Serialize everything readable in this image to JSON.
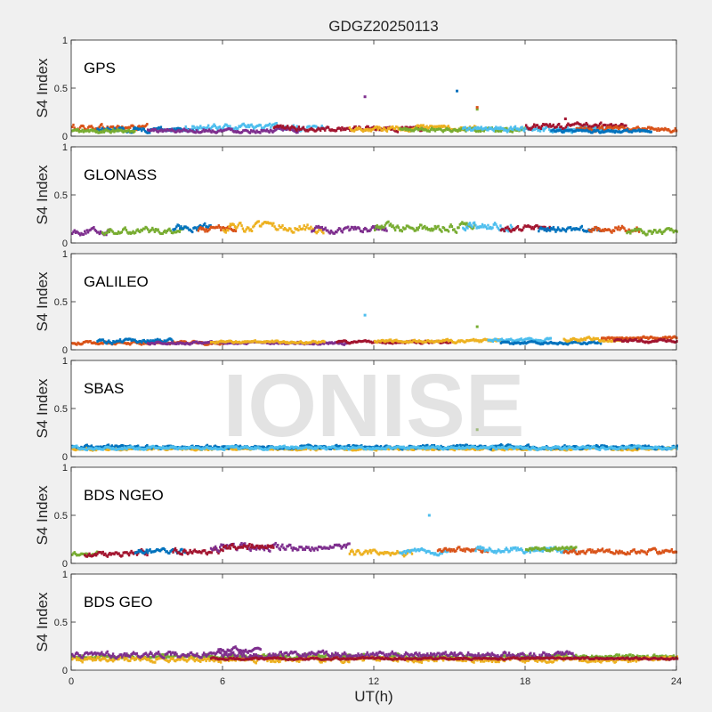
{
  "figure": {
    "title": "GDGZ20250113",
    "xlabel": "UT(h)",
    "watermark": "IONISE"
  },
  "chart_data": [
    {
      "type": "scatter",
      "panel_label": "GPS",
      "ylabel": "S4 Index",
      "xlim": [
        0,
        24
      ],
      "ylim": [
        0,
        1
      ],
      "xticks": [
        "0",
        "6",
        "12",
        "18",
        "24"
      ],
      "yticks": [
        "0",
        "0.5",
        "1"
      ],
      "grid": false,
      "colors": [
        "#0072BD",
        "#D95319",
        "#EDB120",
        "#7E2F8E",
        "#77AC30",
        "#4DBEEE",
        "#A2142F"
      ],
      "segments": [
        {
          "color": "#D95319",
          "x0": 0.0,
          "x1": 3.0,
          "mean": 0.09,
          "amp": 0.03
        },
        {
          "color": "#0072BD",
          "x0": 1.0,
          "x1": 5.0,
          "mean": 0.07,
          "amp": 0.025
        },
        {
          "color": "#77AC30",
          "x0": 0.0,
          "x1": 2.5,
          "mean": 0.05,
          "amp": 0.02
        },
        {
          "color": "#4DBEEE",
          "x0": 4.5,
          "x1": 10.0,
          "mean": 0.09,
          "amp": 0.03
        },
        {
          "color": "#7E2F8E",
          "x0": 3.0,
          "x1": 9.0,
          "mean": 0.06,
          "amp": 0.02
        },
        {
          "color": "#A2142F",
          "x0": 8.0,
          "x1": 14.0,
          "mean": 0.08,
          "amp": 0.025
        },
        {
          "color": "#EDB120",
          "x0": 11.0,
          "x1": 16.0,
          "mean": 0.08,
          "amp": 0.025
        },
        {
          "color": "#77AC30",
          "x0": 13.0,
          "x1": 18.0,
          "mean": 0.07,
          "amp": 0.02
        },
        {
          "color": "#4DBEEE",
          "x0": 15.5,
          "x1": 21.5,
          "mean": 0.07,
          "amp": 0.025
        },
        {
          "color": "#A2142F",
          "x0": 18.0,
          "x1": 22.0,
          "mean": 0.1,
          "amp": 0.03
        },
        {
          "color": "#D95319",
          "x0": 20.0,
          "x1": 24.0,
          "mean": 0.07,
          "amp": 0.025
        },
        {
          "color": "#0072BD",
          "x0": 19.0,
          "x1": 23.0,
          "mean": 0.05,
          "amp": 0.015
        }
      ],
      "outliers": [
        {
          "x": 11.65,
          "y": 0.41,
          "color": "#7E2F8E"
        },
        {
          "x": 15.3,
          "y": 0.47,
          "color": "#0072BD"
        },
        {
          "x": 16.1,
          "y": 0.28,
          "color": "#77AC30"
        },
        {
          "x": 16.1,
          "y": 0.3,
          "color": "#D95319"
        },
        {
          "x": 19.6,
          "y": 0.18,
          "color": "#A2142F"
        }
      ]
    },
    {
      "type": "scatter",
      "panel_label": "GLONASS",
      "ylabel": "S4 Index",
      "xlim": [
        0,
        24
      ],
      "ylim": [
        0,
        1
      ],
      "xticks": [
        "0",
        "6",
        "12",
        "18",
        "24"
      ],
      "yticks": [
        "0",
        "0.5",
        "1"
      ],
      "grid": false,
      "segments": [
        {
          "color": "#7E2F8E",
          "x0": 0.0,
          "x1": 1.5,
          "mean": 0.12,
          "amp": 0.03
        },
        {
          "color": "#77AC30",
          "x0": 1.2,
          "x1": 4.5,
          "mean": 0.13,
          "amp": 0.03
        },
        {
          "color": "#0072BD",
          "x0": 4.0,
          "x1": 5.5,
          "mean": 0.16,
          "amp": 0.03
        },
        {
          "color": "#D95319",
          "x0": 5.0,
          "x1": 6.5,
          "mean": 0.15,
          "amp": 0.03
        },
        {
          "color": "#EDB120",
          "x0": 6.0,
          "x1": 10.0,
          "mean": 0.16,
          "amp": 0.04
        },
        {
          "color": "#7E2F8E",
          "x0": 9.5,
          "x1": 12.5,
          "mean": 0.14,
          "amp": 0.03
        },
        {
          "color": "#77AC30",
          "x0": 12.0,
          "x1": 16.0,
          "mean": 0.16,
          "amp": 0.04
        },
        {
          "color": "#4DBEEE",
          "x0": 15.5,
          "x1": 17.5,
          "mean": 0.18,
          "amp": 0.04
        },
        {
          "color": "#A2142F",
          "x0": 17.0,
          "x1": 19.0,
          "mean": 0.15,
          "amp": 0.03
        },
        {
          "color": "#0072BD",
          "x0": 18.5,
          "x1": 21.0,
          "mean": 0.14,
          "amp": 0.03
        },
        {
          "color": "#D95319",
          "x0": 20.5,
          "x1": 22.5,
          "mean": 0.15,
          "amp": 0.03
        },
        {
          "color": "#77AC30",
          "x0": 22.0,
          "x1": 24.0,
          "mean": 0.12,
          "amp": 0.03
        }
      ],
      "outliers": []
    },
    {
      "type": "scatter",
      "panel_label": "GALILEO",
      "ylabel": "S4 Index",
      "xlim": [
        0,
        24
      ],
      "ylim": [
        0,
        1
      ],
      "xticks": [
        "0",
        "6",
        "12",
        "18",
        "24"
      ],
      "yticks": [
        "0",
        "0.5",
        "1"
      ],
      "grid": false,
      "segments": [
        {
          "color": "#D95319",
          "x0": 0.0,
          "x1": 6.0,
          "mean": 0.07,
          "amp": 0.015
        },
        {
          "color": "#0072BD",
          "x0": 1.0,
          "x1": 4.0,
          "mean": 0.09,
          "amp": 0.02
        },
        {
          "color": "#7E2F8E",
          "x0": 3.0,
          "x1": 11.0,
          "mean": 0.07,
          "amp": 0.012
        },
        {
          "color": "#EDB120",
          "x0": 5.5,
          "x1": 10.0,
          "mean": 0.08,
          "amp": 0.012
        },
        {
          "color": "#A2142F",
          "x0": 10.5,
          "x1": 15.0,
          "mean": 0.08,
          "amp": 0.012
        },
        {
          "color": "#EDB120",
          "x0": 12.0,
          "x1": 17.0,
          "mean": 0.09,
          "amp": 0.015
        },
        {
          "color": "#4DBEEE",
          "x0": 16.5,
          "x1": 19.0,
          "mean": 0.1,
          "amp": 0.015
        },
        {
          "color": "#0072BD",
          "x0": 17.0,
          "x1": 21.0,
          "mean": 0.07,
          "amp": 0.012
        },
        {
          "color": "#EDB120",
          "x0": 19.5,
          "x1": 22.0,
          "mean": 0.11,
          "amp": 0.02
        },
        {
          "color": "#D95319",
          "x0": 21.0,
          "x1": 24.0,
          "mean": 0.12,
          "amp": 0.015
        },
        {
          "color": "#A2142F",
          "x0": 21.5,
          "x1": 24.0,
          "mean": 0.09,
          "amp": 0.015
        }
      ],
      "outliers": [
        {
          "x": 11.65,
          "y": 0.36,
          "color": "#4DBEEE"
        },
        {
          "x": 16.1,
          "y": 0.24,
          "color": "#77AC30"
        }
      ]
    },
    {
      "type": "scatter",
      "panel_label": "SBAS",
      "ylabel": "S4 Index",
      "xlim": [
        0,
        24
      ],
      "ylim": [
        0,
        1
      ],
      "xticks": [
        "0",
        "6",
        "12",
        "18",
        "24"
      ],
      "yticks": [
        "0",
        "0.5",
        "1"
      ],
      "grid": false,
      "segments": [
        {
          "color": "#EDB120",
          "x0": 0.0,
          "x1": 24.0,
          "mean": 0.08,
          "amp": 0.012
        },
        {
          "color": "#0072BD",
          "x0": 0.0,
          "x1": 24.0,
          "mean": 0.1,
          "amp": 0.018
        },
        {
          "color": "#4DBEEE",
          "x0": 0.0,
          "x1": 24.0,
          "mean": 0.09,
          "amp": 0.015
        }
      ],
      "outliers": [
        {
          "x": 16.1,
          "y": 0.28,
          "color": "#77AC30"
        }
      ]
    },
    {
      "type": "scatter",
      "panel_label": "BDS NGEO",
      "ylabel": "S4 Index",
      "xlim": [
        0,
        24
      ],
      "ylim": [
        0,
        1
      ],
      "xticks": [
        "0",
        "6",
        "12",
        "18",
        "24"
      ],
      "yticks": [
        "0",
        "0.5",
        "1"
      ],
      "grid": false,
      "segments": [
        {
          "color": "#77AC30",
          "x0": 0.0,
          "x1": 1.0,
          "mean": 0.1,
          "amp": 0.02
        },
        {
          "color": "#A2142F",
          "x0": 0.5,
          "x1": 3.0,
          "mean": 0.1,
          "amp": 0.03
        },
        {
          "color": "#0072BD",
          "x0": 2.5,
          "x1": 4.5,
          "mean": 0.12,
          "amp": 0.025
        },
        {
          "color": "#A2142F",
          "x0": 4.0,
          "x1": 6.0,
          "mean": 0.13,
          "amp": 0.03
        },
        {
          "color": "#7E2F8E",
          "x0": 5.5,
          "x1": 11.0,
          "mean": 0.17,
          "amp": 0.035
        },
        {
          "color": "#A2142F",
          "x0": 6.0,
          "x1": 8.0,
          "mean": 0.18,
          "amp": 0.03
        },
        {
          "color": "#EDB120",
          "x0": 11.0,
          "x1": 13.5,
          "mean": 0.11,
          "amp": 0.03
        },
        {
          "color": "#4DBEEE",
          "x0": 13.0,
          "x1": 15.0,
          "mean": 0.12,
          "amp": 0.025
        },
        {
          "color": "#D95319",
          "x0": 14.5,
          "x1": 16.5,
          "mean": 0.14,
          "amp": 0.025
        },
        {
          "color": "#4DBEEE",
          "x0": 16.0,
          "x1": 20.0,
          "mean": 0.14,
          "amp": 0.03
        },
        {
          "color": "#77AC30",
          "x0": 18.0,
          "x1": 20.0,
          "mean": 0.15,
          "amp": 0.02
        },
        {
          "color": "#D95319",
          "x0": 19.5,
          "x1": 24.0,
          "mean": 0.12,
          "amp": 0.025
        }
      ],
      "outliers": [
        {
          "x": 14.2,
          "y": 0.5,
          "color": "#4DBEEE"
        }
      ]
    },
    {
      "type": "scatter",
      "panel_label": "BDS GEO",
      "ylabel": "S4 Index",
      "xlim": [
        0,
        24
      ],
      "ylim": [
        0,
        1
      ],
      "xticks": [
        "0",
        "6",
        "12",
        "18",
        "24"
      ],
      "yticks": [
        "0",
        "0.5",
        "1"
      ],
      "grid": false,
      "segments": [
        {
          "color": "#77AC30",
          "x0": 0.0,
          "x1": 24.0,
          "mean": 0.14,
          "amp": 0.02
        },
        {
          "color": "#EDB120",
          "x0": 0.0,
          "x1": 24.0,
          "mean": 0.11,
          "amp": 0.025
        },
        {
          "color": "#7E2F8E",
          "x0": 0.0,
          "x1": 20.0,
          "mean": 0.16,
          "amp": 0.03
        },
        {
          "color": "#7E2F8E",
          "x0": 5.8,
          "x1": 7.5,
          "mean": 0.21,
          "amp": 0.025
        },
        {
          "color": "#A2142F",
          "x0": 5.5,
          "x1": 24.0,
          "mean": 0.12,
          "amp": 0.01
        }
      ],
      "outliers": []
    }
  ]
}
